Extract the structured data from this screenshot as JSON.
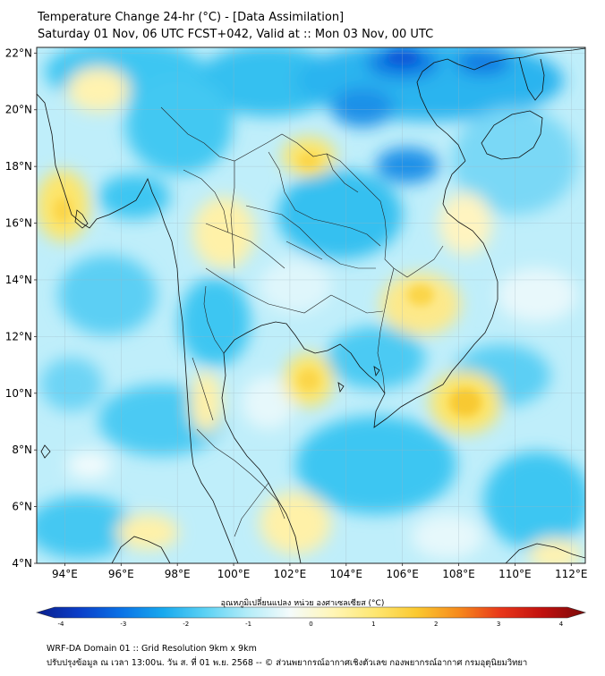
{
  "header": {
    "line1": "Temperature Change 24-hr (°C) - [Data Assimilation]",
    "line2": "Saturday 01 Nov, 06 UTC FCST+042, Valid at :: Mon 03 Nov, 00 UTC"
  },
  "map": {
    "lon_range": [
      93,
      112.5
    ],
    "lat_range": [
      4,
      22.2
    ],
    "lat_ticks": [
      "22°N",
      "20°N",
      "18°N",
      "16°N",
      "14°N",
      "12°N",
      "10°N",
      "8°N",
      "6°N",
      "4°N"
    ],
    "lon_ticks": [
      "94°E",
      "96°E",
      "98°E",
      "100°E",
      "102°E",
      "104°E",
      "106°E",
      "108°E",
      "110°E",
      "112°E"
    ],
    "field_colors": {
      "cool_strong": "#0a64e0",
      "cool": "#29b6f0",
      "cool_light": "#9fe4f8",
      "neutral": "#f2fbfc",
      "warm_light": "#fff6b8",
      "warm": "#fde566",
      "warm_strong": "#f8c930"
    }
  },
  "colorbar": {
    "label": "อุณหภูมิเปลี่ยนแปลง หน่วย องศาเซลเซียส (°C)",
    "ticks": [
      "-4",
      "-3",
      "-2",
      "-1",
      "0",
      "1",
      "2",
      "3",
      "4"
    ],
    "colors": [
      "#0a1e8c",
      "#0b3ec8",
      "#0a72e6",
      "#18a9ee",
      "#5cd2f4",
      "#b3ecf8",
      "#f4fbfb",
      "#fff6b8",
      "#fee772",
      "#fbc930",
      "#f68a1c",
      "#e8361a",
      "#c0100e",
      "#7a0a0a"
    ]
  },
  "footer": {
    "line1": "WRF-DA Domain 01 :: Grid Resolution 9km x 9km",
    "line2": "ปรับปรุงข้อมูล ณ เวลา 13:00น. วัน ส. ที่ 01 พ.ย. 2568 -- © ส่วนพยากรณ์อากาศเชิงตัวเลข กองพยากรณ์อากาศ กรมอุตุนิยมวิทยา"
  }
}
